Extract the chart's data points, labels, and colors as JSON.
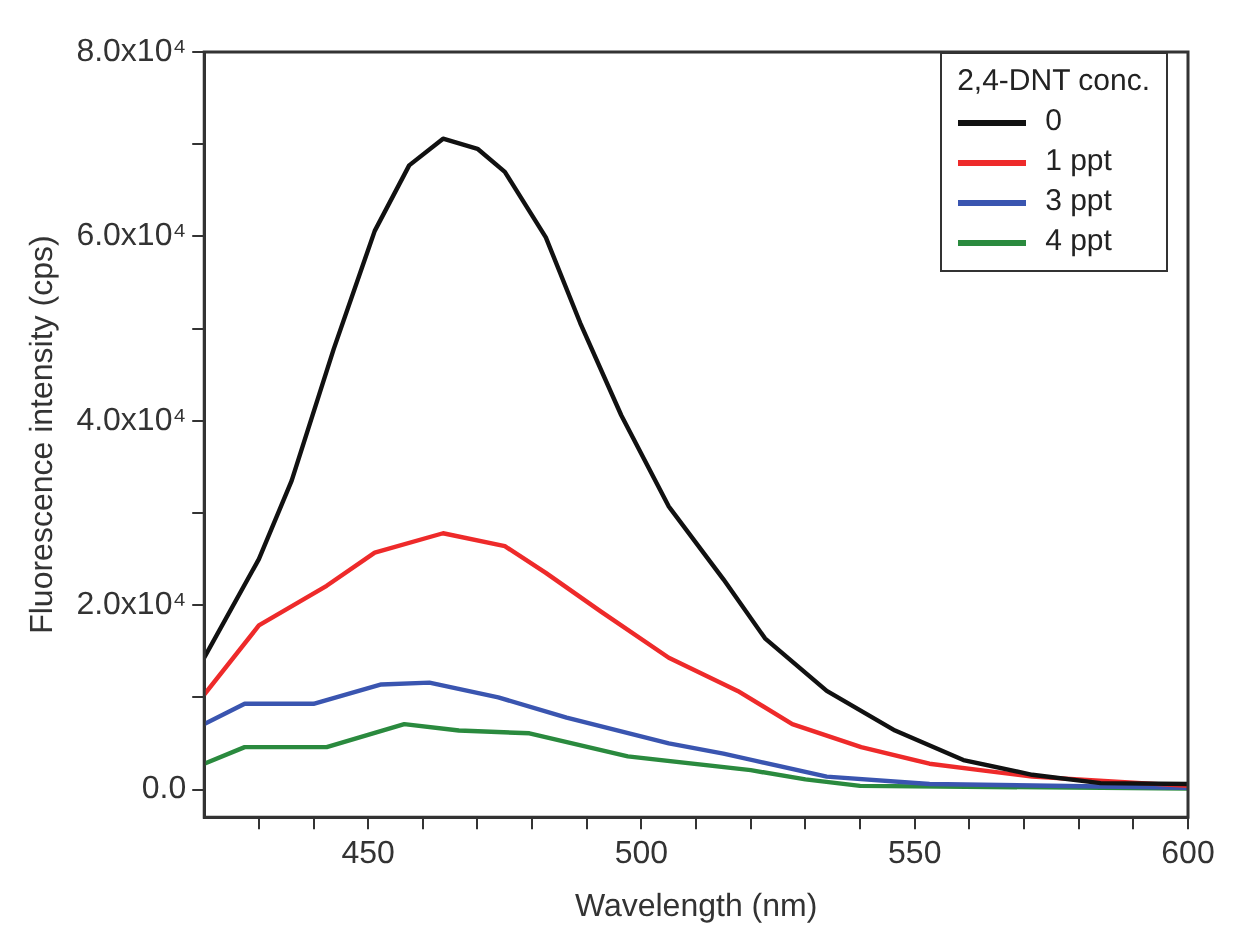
{
  "chart_data": {
    "type": "line",
    "xlabel": "Wavelength (nm)",
    "ylabel": "Fluorescence intensity (cps)",
    "legend_title": "2,4-DNT conc.",
    "legend": "top right",
    "grid": false,
    "marker": "none",
    "line_style": "solid",
    "xlim": [
      420,
      600
    ],
    "xticks": [
      {
        "value": 430,
        "label": null
      },
      {
        "value": 440,
        "label": null
      },
      450,
      {
        "value": 460,
        "label": null
      },
      {
        "value": 470,
        "label": null
      },
      {
        "value": 480,
        "label": null
      },
      {
        "value": 490,
        "label": null
      },
      500,
      {
        "value": 510,
        "label": null
      },
      {
        "value": 520,
        "label": null
      },
      {
        "value": 530,
        "label": null
      },
      {
        "value": 540,
        "label": null
      },
      550,
      {
        "value": 560,
        "label": null
      },
      {
        "value": 570,
        "label": null
      },
      {
        "value": 580,
        "label": null
      },
      {
        "value": 590,
        "label": null
      },
      600
    ],
    "ylim": [
      -3000,
      80000
    ],
    "yticks": [
      {
        "value": 0,
        "label": "0.0"
      },
      {
        "value": 10000,
        "label": null
      },
      {
        "value": 20000,
        "label": "2.0x10⁴"
      },
      {
        "value": 30000,
        "label": null
      },
      {
        "value": 40000,
        "label": "4.0x10⁴"
      },
      {
        "value": 50000,
        "label": null
      },
      {
        "value": 60000,
        "label": "6.0x10⁴"
      },
      {
        "value": 70000,
        "label": null
      },
      {
        "value": 80000,
        "label": "8.0x10⁴"
      }
    ],
    "series": [
      {
        "name": "0",
        "color": "#111111",
        "x": [
          420,
          430,
          436,
          443.7,
          451.2,
          457.5,
          463.7,
          470,
          475,
          482.5,
          488.8,
          496.3,
          505,
          515,
          522.6,
          533.9,
          546.4,
          558.9,
          571.5,
          584,
          600
        ],
        "values": [
          14300,
          25000,
          33500,
          47800,
          60600,
          67700,
          70600,
          69500,
          67000,
          59900,
          50600,
          40600,
          30700,
          22800,
          16400,
          10700,
          6400,
          3200,
          1600,
          700,
          600
        ]
      },
      {
        "name": "1 ppt",
        "color": "#ee2a2a",
        "x": [
          420,
          430,
          442.4,
          451.2,
          463.7,
          475,
          482.5,
          492.6,
          505,
          517.6,
          527.6,
          540.2,
          552.7,
          571.5,
          600
        ],
        "values": [
          10300,
          17800,
          22100,
          25700,
          27800,
          26400,
          23500,
          19300,
          14300,
          10700,
          7100,
          4600,
          2800,
          1400,
          400
        ]
      },
      {
        "name": "3 ppt",
        "color": "#3a55b0",
        "x": [
          420,
          427.4,
          440,
          452.4,
          461.2,
          473.8,
          486.3,
          505,
          515,
          533.9,
          552.7,
          600
        ],
        "values": [
          7100,
          9300,
          9300,
          11400,
          11600,
          10000,
          7800,
          5000,
          3900,
          1400,
          600,
          200
        ]
      },
      {
        "name": "4 ppt",
        "color": "#2a8a3e",
        "x": [
          420,
          427.4,
          442.4,
          456.6,
          466.6,
          479.5,
          497.5,
          520,
          530,
          540,
          600
        ],
        "values": [
          2800,
          4600,
          4600,
          7100,
          6400,
          6100,
          3600,
          2100,
          1100,
          400,
          100
        ]
      }
    ]
  }
}
